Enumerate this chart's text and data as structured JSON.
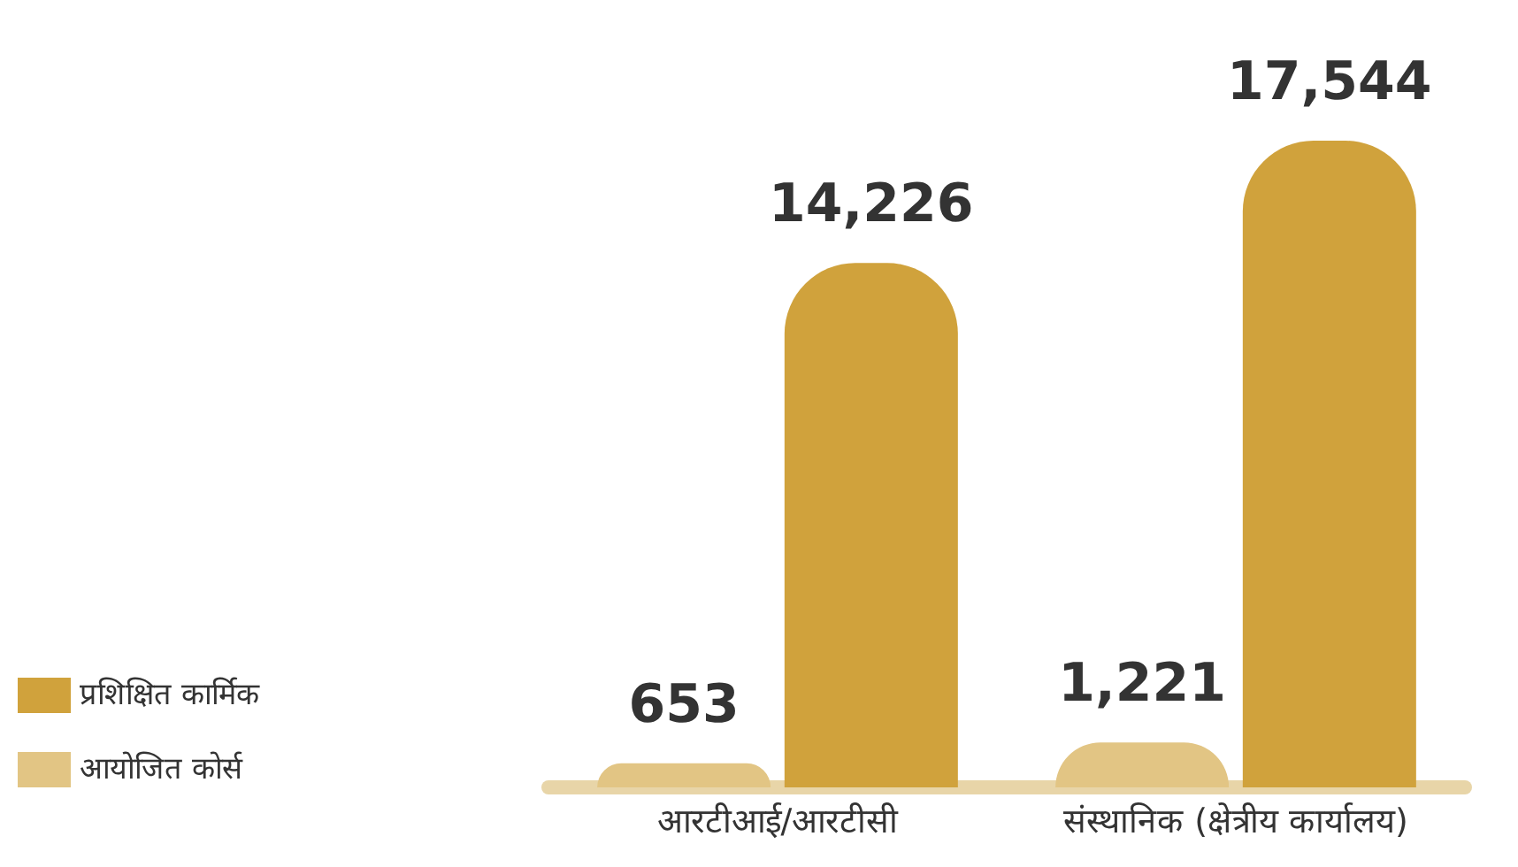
{
  "chart_data": {
    "type": "bar",
    "categories": [
      "आरटीआई/आरटीसी",
      "संस्थानिक (क्षेत्रीय कार्यालय)"
    ],
    "series": [
      {
        "name": "आयोजित कोर्स",
        "color": "#e2c584",
        "values": [
          653,
          1221
        ],
        "value_labels": [
          "653",
          "1,221"
        ]
      },
      {
        "name": "प्रशिक्षित कार्मिक",
        "color": "#d0a23c",
        "values": [
          14226,
          17544
        ],
        "value_labels": [
          "14,226",
          "17,544"
        ]
      }
    ],
    "legend": "bottom left"
  }
}
